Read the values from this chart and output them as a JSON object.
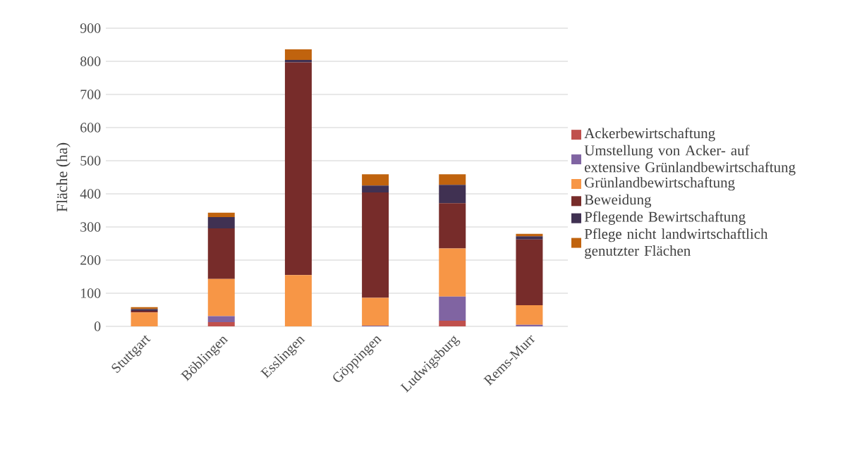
{
  "chart_data": {
    "type": "bar",
    "stacked": true,
    "ylabel": "Fläche (ha)",
    "categories": [
      "Stuttgart",
      "Böblingen",
      "Esslingen",
      "Göppingen",
      "Ludwigsburg",
      "Rems-Murr"
    ],
    "series": [
      {
        "name": "Ackerbewirtschaftung",
        "color": "#c0504d",
        "values": [
          0,
          13,
          0,
          0,
          17,
          0
        ]
      },
      {
        "name": "Umstellung von Acker- auf extensive Grünlandbewirtschaftung",
        "color": "#8064a2",
        "values": [
          0,
          18,
          0,
          2,
          73,
          5
        ]
      },
      {
        "name": "Grünlandbewirtschaftung",
        "color": "#f79646",
        "values": [
          42,
          112,
          155,
          84,
          145,
          59
        ]
      },
      {
        "name": "Beweidung",
        "color": "#772c2a",
        "values": [
          5,
          153,
          642,
          318,
          137,
          198
        ]
      },
      {
        "name": "Pflegende Bewirtschaftung",
        "color": "#403152",
        "values": [
          5,
          34,
          7,
          21,
          55,
          10
        ]
      },
      {
        "name": "Pflege nicht landwirtschaftlich genutzter Flächen",
        "color": "#c0630e",
        "values": [
          6,
          13,
          32,
          34,
          32,
          7
        ]
      }
    ],
    "ylim": [
      0,
      900
    ],
    "yticks": [
      0,
      100,
      200,
      300,
      400,
      500,
      600,
      700,
      800,
      900
    ],
    "grid": "y",
    "legend": "right"
  }
}
